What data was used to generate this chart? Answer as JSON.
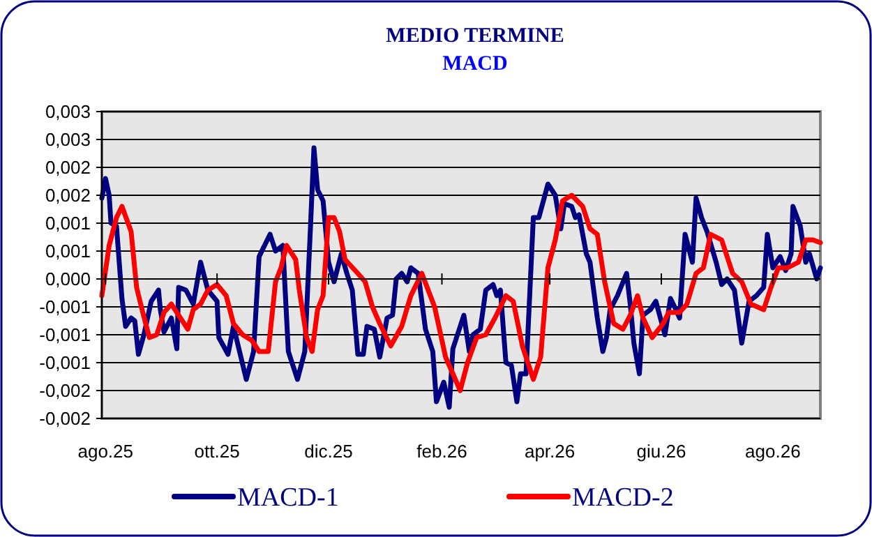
{
  "chart_data": {
    "type": "line",
    "title": "MEDIO TERMINE",
    "subtitle": "MACD",
    "xlim": [
      "2025-07-30",
      "2026-08-27"
    ],
    "xticks": [
      {
        "value": "2025-08-01",
        "label": "ago.25"
      },
      {
        "value": "2025-10-01",
        "label": "ott.25"
      },
      {
        "value": "2025-12-01",
        "label": "dic.25"
      },
      {
        "value": "2026-02-01",
        "label": "feb.26"
      },
      {
        "value": "2026-04-01",
        "label": "apr.26"
      },
      {
        "value": "2026-06-01",
        "label": "giu.26"
      },
      {
        "value": "2026-08-01",
        "label": "ago.26"
      }
    ],
    "ylim": [
      -0.0025,
      0.003
    ],
    "yticks": [
      {
        "value": 0.003,
        "label": "0,003"
      },
      {
        "value": 0.0025,
        "label": "0,003"
      },
      {
        "value": 0.002,
        "label": "0,002"
      },
      {
        "value": 0.0015,
        "label": "0,002"
      },
      {
        "value": 0.001,
        "label": "0,001"
      },
      {
        "value": 0.0005,
        "label": "0,001"
      },
      {
        "value": 0,
        "label": "0,000"
      },
      {
        "value": -0.0005,
        "label": "-0,001"
      },
      {
        "value": -0.001,
        "label": "-0,001"
      },
      {
        "value": -0.0015,
        "label": "-0,001"
      },
      {
        "value": -0.002,
        "label": "-0,002"
      },
      {
        "value": -0.0025,
        "label": "-0,002"
      }
    ],
    "grid": "y",
    "legend": "bottom",
    "line_style": "solid",
    "series": [
      {
        "name": "MACD-1",
        "color": "#000080",
        "x": [
          "2025-07-30",
          "2025-08-01",
          "2025-08-03",
          "2025-08-04",
          "2025-08-07",
          "2025-08-10",
          "2025-08-12",
          "2025-08-15",
          "2025-08-17",
          "2025-08-19",
          "2025-08-22",
          "2025-08-26",
          "2025-08-30",
          "2025-08-31",
          "2025-09-02",
          "2025-09-06",
          "2025-09-09",
          "2025-09-10",
          "2025-09-14",
          "2025-09-18",
          "2025-09-22",
          "2025-09-26",
          "2025-10-01",
          "2025-10-02",
          "2025-10-07",
          "2025-10-10",
          "2025-10-17",
          "2025-10-21",
          "2025-10-24",
          "2025-10-30",
          "2025-11-02",
          "2025-11-06",
          "2025-11-09",
          "2025-11-14",
          "2025-11-18",
          "2025-11-21",
          "2025-11-23",
          "2025-11-25",
          "2025-11-28",
          "2025-12-01",
          "2025-12-04",
          "2025-12-08",
          "2025-12-11",
          "2025-12-14",
          "2025-12-17",
          "2025-12-20",
          "2025-12-22",
          "2025-12-26",
          "2025-12-29",
          "2026-01-02",
          "2026-01-05",
          "2026-01-07",
          "2026-01-10",
          "2026-01-13",
          "2026-01-15",
          "2026-01-19",
          "2026-01-23",
          "2026-01-27",
          "2026-01-29",
          "2026-02-02",
          "2026-02-05",
          "2026-02-07",
          "2026-02-11",
          "2026-02-13",
          "2026-02-16",
          "2026-02-18",
          "2026-02-22",
          "2026-02-25",
          "2026-03-01",
          "2026-03-03",
          "2026-03-05",
          "2026-03-08",
          "2026-03-11",
          "2026-03-14",
          "2026-03-16",
          "2026-03-19",
          "2026-03-23",
          "2026-03-26",
          "2026-03-31",
          "2026-04-04",
          "2026-04-07",
          "2026-04-09",
          "2026-04-13",
          "2026-04-15",
          "2026-04-17",
          "2026-04-21",
          "2026-04-23",
          "2026-04-27",
          "2026-04-30",
          "2026-05-02",
          "2026-05-04",
          "2026-05-08",
          "2026-05-13",
          "2026-05-15",
          "2026-05-17",
          "2026-05-20",
          "2026-05-22",
          "2026-05-26",
          "2026-05-29",
          "2026-06-03",
          "2026-06-06",
          "2026-06-09",
          "2026-06-11",
          "2026-06-14",
          "2026-06-18",
          "2026-06-20",
          "2026-06-23",
          "2026-06-26",
          "2026-07-01",
          "2026-07-04",
          "2026-07-07",
          "2026-07-11",
          "2026-07-15",
          "2026-07-19",
          "2026-07-23",
          "2026-07-27",
          "2026-07-29",
          "2026-08-01",
          "2026-08-05",
          "2026-08-08",
          "2026-08-11",
          "2026-08-12",
          "2026-08-16",
          "2026-08-19",
          "2026-08-21",
          "2026-08-25",
          "2026-08-27"
        ],
        "values": [
          0.00145,
          0.0018,
          0.0015,
          0.001,
          0.00095,
          -0.00035,
          -0.00085,
          -0.0007,
          -0.00075,
          -0.00135,
          -0.001,
          -0.0004,
          -0.0002,
          -0.00055,
          -0.00095,
          -0.0007,
          -0.00125,
          -0.00015,
          -0.0002,
          -0.00045,
          0.0003,
          -0.0002,
          -0.0004,
          -0.00105,
          -0.00135,
          -0.00085,
          -0.0018,
          -0.0013,
          0.0004,
          0.0008,
          0.0005,
          0.0006,
          -0.0013,
          -0.0018,
          -0.0013,
          0.00085,
          0.00235,
          0.0016,
          0.0014,
          0.0003,
          -5e-05,
          0.00045,
          0.0001,
          -0.0002,
          -0.00135,
          -0.00135,
          -0.00085,
          -0.0009,
          -0.0014,
          -0.0007,
          -0.00065,
          0,
          0.0001,
          -5e-05,
          0.0002,
          0.0001,
          -0.0009,
          -0.0013,
          -0.0022,
          -0.00185,
          -0.0023,
          -0.00125,
          -0.00085,
          -0.00065,
          -0.0013,
          -0.001,
          -0.0009,
          -0.0002,
          -0.0001,
          -0.0003,
          -0.0002,
          -0.0015,
          -0.00155,
          -0.0022,
          -0.0017,
          -0.0017,
          0.0011,
          0.0011,
          0.0017,
          0.0015,
          0.0009,
          0.00135,
          0.0013,
          0.0011,
          0.00115,
          0.00045,
          0.0003,
          -0.0007,
          -0.0013,
          -0.00105,
          -0.00055,
          -0.0003,
          0.0001,
          -0.00045,
          -0.00115,
          -0.0017,
          -0.00065,
          -0.00055,
          -0.0004,
          -0.001,
          -0.00035,
          -0.00055,
          -0.0007,
          0.0008,
          0.0003,
          0.00145,
          0.0011,
          0.00085,
          0.0003,
          -0.0001,
          0,
          -0.0002,
          -0.00115,
          -0.0004,
          -0.0003,
          -0.00015,
          0.0008,
          0.0002,
          0.0004,
          0.00015,
          0.00045,
          0.0013,
          0.00095,
          0.0003,
          0.00045,
          0,
          0.0002
        ]
      },
      {
        "name": "MACD-2",
        "color": "#ff0000",
        "x": [
          "2025-07-30",
          "2025-08-03",
          "2025-08-07",
          "2025-08-10",
          "2025-08-15",
          "2025-08-18",
          "2025-08-21",
          "2025-08-25",
          "2025-08-29",
          "2025-09-02",
          "2025-09-06",
          "2025-09-10",
          "2025-09-15",
          "2025-09-18",
          "2025-09-22",
          "2025-09-26",
          "2025-10-01",
          "2025-10-06",
          "2025-10-10",
          "2025-10-15",
          "2025-10-20",
          "2025-10-24",
          "2025-10-29",
          "2025-11-02",
          "2025-11-05",
          "2025-11-08",
          "2025-11-13",
          "2025-11-15",
          "2025-11-19",
          "2025-11-22",
          "2025-11-25",
          "2025-11-28",
          "2025-12-01",
          "2025-12-04",
          "2025-12-07",
          "2025-12-10",
          "2025-12-17",
          "2025-12-21",
          "2025-12-25",
          "2025-12-29",
          "2026-01-04",
          "2026-01-10",
          "2026-01-15",
          "2026-01-21",
          "2026-01-28",
          "2026-02-03",
          "2026-02-11",
          "2026-02-15",
          "2026-02-20",
          "2026-02-25",
          "2026-03-02",
          "2026-03-08",
          "2026-03-12",
          "2026-03-17",
          "2026-03-23",
          "2026-03-27",
          "2026-03-31",
          "2026-04-04",
          "2026-04-08",
          "2026-04-13",
          "2026-04-19",
          "2026-04-23",
          "2026-04-27",
          "2026-05-01",
          "2026-05-06",
          "2026-05-11",
          "2026-05-15",
          "2026-05-19",
          "2026-05-22",
          "2026-05-27",
          "2026-06-02",
          "2026-06-05",
          "2026-06-11",
          "2026-06-15",
          "2026-06-20",
          "2026-06-24",
          "2026-06-28",
          "2026-07-04",
          "2026-07-10",
          "2026-07-15",
          "2026-07-20",
          "2026-07-27",
          "2026-07-31",
          "2026-08-04",
          "2026-08-09",
          "2026-08-15",
          "2026-08-19",
          "2026-08-23",
          "2026-08-27"
        ],
        "values": [
          -0.0003,
          0.0006,
          0.0011,
          0.0013,
          0.00085,
          -0.00015,
          -0.00055,
          -0.00105,
          -0.001,
          -0.0006,
          -0.00045,
          -0.00065,
          -0.0009,
          -0.00055,
          -0.00045,
          -0.0002,
          -0.0001,
          -0.0003,
          -0.0008,
          -0.001,
          -0.0011,
          -0.0013,
          -0.0013,
          -5e-05,
          0.0002,
          0.0006,
          0.00035,
          -0.0002,
          -0.00105,
          -0.0013,
          -0.00055,
          -0.0003,
          0.0011,
          0.0011,
          0.00085,
          0.00035,
          0.0001,
          -5e-05,
          -0.0005,
          -0.0008,
          -0.0012,
          -0.00085,
          -0.0003,
          0.0001,
          -0.0005,
          -0.0014,
          -0.002,
          -0.0015,
          -0.00105,
          -0.001,
          -0.0007,
          -0.0003,
          -0.0004,
          -0.0012,
          -0.0018,
          -0.0014,
          0.0002,
          0.0007,
          0.0014,
          0.0015,
          0.0013,
          0.0009,
          0.0008,
          -5e-05,
          -0.0008,
          -0.0009,
          -0.00065,
          -0.0003,
          -0.0007,
          -0.00105,
          -0.0008,
          -0.0006,
          -0.0006,
          -0.00045,
          0.0001,
          0.0002,
          0.0008,
          0.0007,
          0.0001,
          -5e-05,
          -0.00045,
          -0.00055,
          -0.00015,
          0.0002,
          0.0002,
          0.0003,
          0.0007,
          0.0007,
          0.00065
        ]
      }
    ]
  }
}
